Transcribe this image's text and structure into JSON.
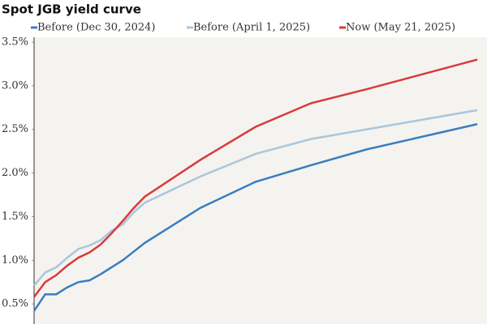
{
  "chart_data": {
    "type": "line",
    "title": "Spot JGB yield curve",
    "x": [
      0,
      1,
      2,
      3,
      4,
      5,
      6,
      7,
      8,
      9,
      10,
      15,
      20,
      25,
      30,
      40
    ],
    "xlim": [
      0,
      40
    ],
    "ylim": [
      0.27,
      3.5
    ],
    "yticks": [
      {
        "value": 0.5,
        "label": "0.5%"
      },
      {
        "value": 1.0,
        "label": "1.0%"
      },
      {
        "value": 1.5,
        "label": "1.5%"
      },
      {
        "value": 2.0,
        "label": "2.0%"
      },
      {
        "value": 2.5,
        "label": "2.5%"
      },
      {
        "value": 3.0,
        "label": "3.0%"
      },
      {
        "value": 3.5,
        "label": "3.5%"
      }
    ],
    "grid": false,
    "legend": "top",
    "series": [
      {
        "name": "Before (Dec 30, 2024)",
        "color": "#3a7dbf",
        "values": [
          0.42,
          0.61,
          0.61,
          0.69,
          0.75,
          0.77,
          0.84,
          0.92,
          1.0,
          1.1,
          1.2,
          1.6,
          1.9,
          2.09,
          2.27,
          2.56
        ]
      },
      {
        "name": "Before (April 1, 2025)",
        "color": "#a9c6dc",
        "values": [
          0.71,
          0.86,
          0.92,
          1.03,
          1.13,
          1.17,
          1.23,
          1.34,
          1.41,
          1.55,
          1.66,
          1.96,
          2.22,
          2.39,
          2.5,
          2.72
        ]
      },
      {
        "name": "Now (May 21, 2025)",
        "color": "#d9393b",
        "values": [
          0.58,
          0.75,
          0.83,
          0.94,
          1.03,
          1.09,
          1.18,
          1.31,
          1.45,
          1.6,
          1.73,
          2.15,
          2.53,
          2.8,
          2.96,
          3.3
        ]
      }
    ]
  }
}
